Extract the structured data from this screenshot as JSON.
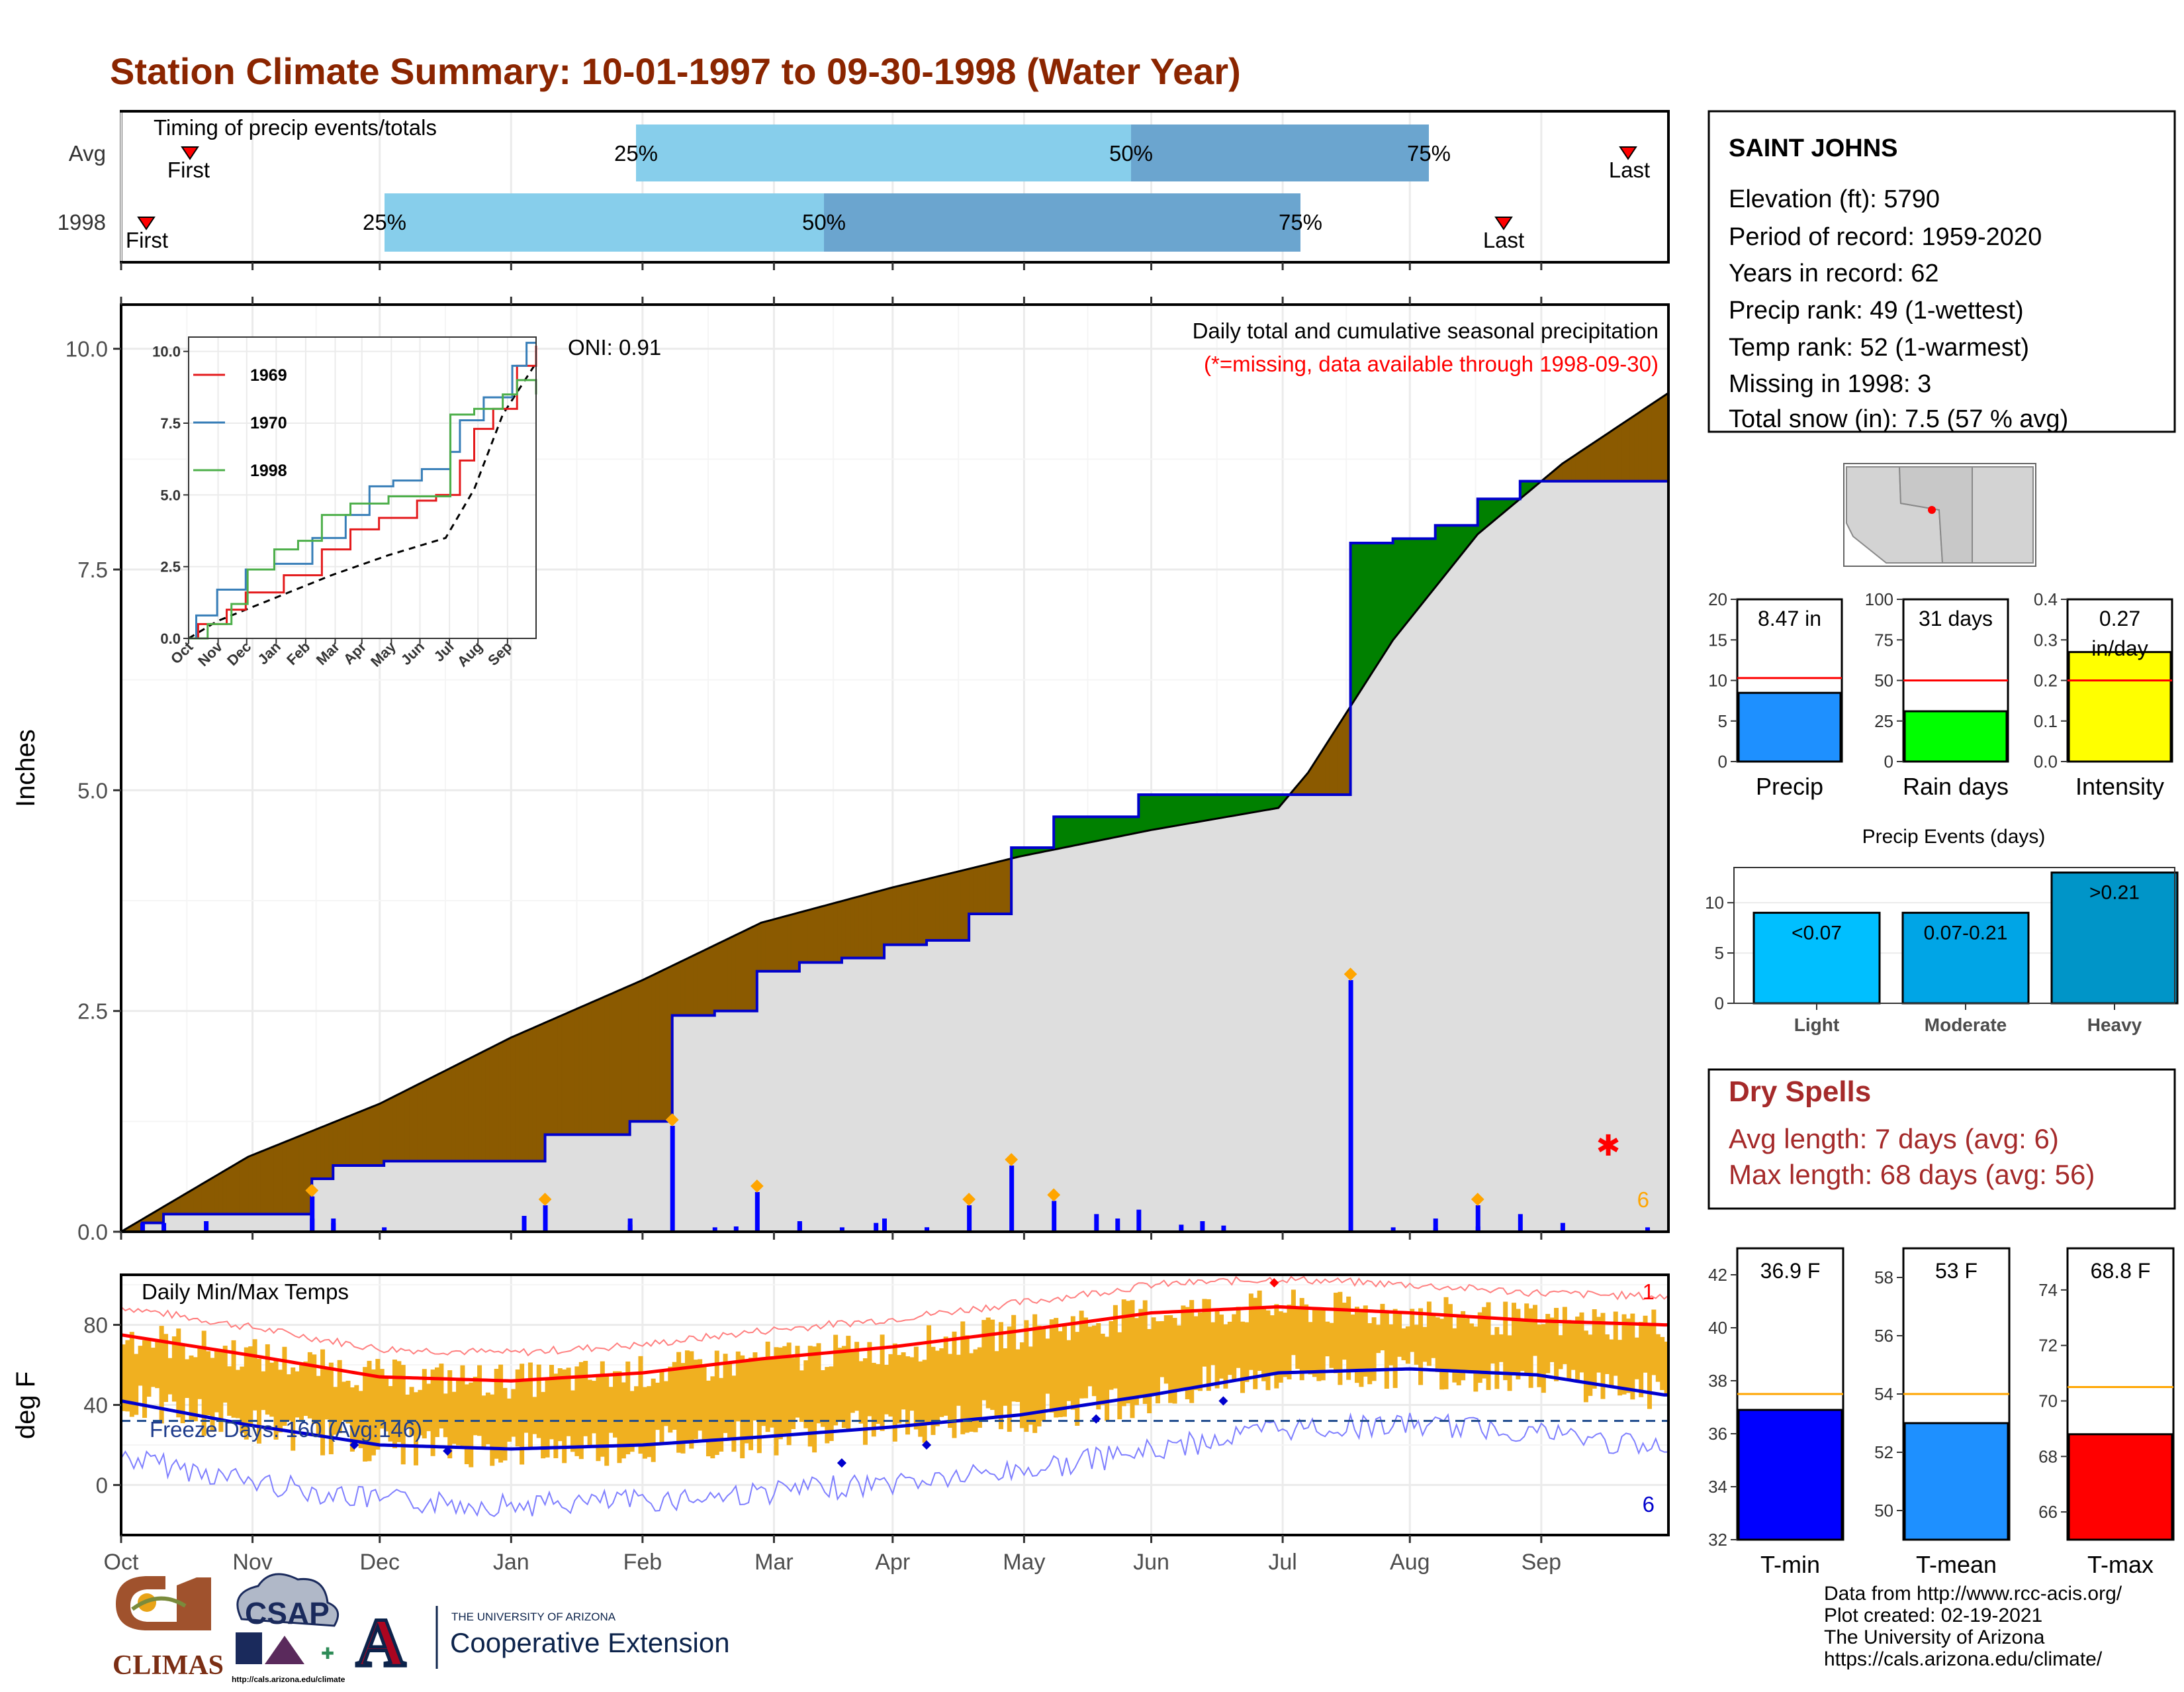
{
  "title": "Station Climate Summary: 10-01-1997 to 09-30-1998 (Water Year)",
  "colors": {
    "title": "#8B2500",
    "precip_line": "#0000CD",
    "precip_green": "#008000",
    "precip_brown": "#8B5A00",
    "avg_fill": "#DEDEDE",
    "tmax_avg": "#FF0000",
    "tmin_avg": "#0000CD",
    "temp_bar": "#F0B020",
    "light_blue": "#87CEEB",
    "mid_blue": "#6BA5CF",
    "precip_bar": "#1E90FF",
    "raindays_bar": "#00FF00",
    "intensity_bar": "#FFFF00",
    "tmin_bar": "#0000FF",
    "tmean_bar": "#1E90FF",
    "tmax_bar": "#FF0000",
    "event_light": "#00BFFF",
    "event_moderate": "#00A5E6",
    "event_heavy": "#0095C8",
    "dry_spell": "#A52A2A"
  },
  "timing": {
    "label": "Timing of precip events/totals",
    "rows": [
      {
        "name": "Avg",
        "first_label": "First",
        "last_label": "Last",
        "p25": "25%",
        "p50": "50%",
        "p75": "75%"
      },
      {
        "name": "1998",
        "first_label": "First",
        "last_label": "Last",
        "p25": "25%",
        "p50": "50%",
        "p75": "75%"
      }
    ]
  },
  "precip_panel": {
    "ylabel": "Inches",
    "yticks": [
      "0.0",
      "2.5",
      "5.0",
      "7.5",
      "10.0"
    ],
    "subtitle": "Daily total and cumulative seasonal precipitation",
    "missing_note": "(*=missing, data available through 1998-09-30)",
    "oni": "ONI: 0.91",
    "missing_count": "6"
  },
  "months": [
    "Oct",
    "Nov",
    "Dec",
    "Jan",
    "Feb",
    "Mar",
    "Apr",
    "May",
    "Jun",
    "Jul",
    "Aug",
    "Sep"
  ],
  "inset": {
    "yticks": [
      "0.0",
      "2.5",
      "5.0",
      "7.5",
      "10.0"
    ],
    "months": [
      "Oct",
      "Nov",
      "Dec",
      "Jan",
      "Feb",
      "Mar",
      "Apr",
      "May",
      "Jun",
      "Jul",
      "Aug",
      "Sep"
    ],
    "legend": [
      {
        "name": "1969",
        "color": "#E41A1C"
      },
      {
        "name": "1970",
        "color": "#377EB8"
      },
      {
        "name": "1998",
        "color": "#4DAF4A"
      }
    ]
  },
  "temp_panel": {
    "label": "Daily Min/Max Temps",
    "ylabel": "deg F",
    "yticks": [
      "0",
      "40",
      "80"
    ],
    "freeze": "Freeze Days: 160 (Avg:146)",
    "record_high_count": "1",
    "record_low_count": "6"
  },
  "station": {
    "name": "SAINT JOHNS",
    "lines": [
      "Elevation (ft): 5790",
      "Period of record: 1959-2020",
      "Years in record: 62",
      "Precip rank: 49 (1-wettest)",
      "Temp rank: 52 (1-warmest)",
      "Missing in 1998: 3",
      "Total snow (in): 7.5 (57 % avg)"
    ]
  },
  "summary_bars": [
    {
      "label": "Precip",
      "value_text": "8.47 in",
      "value": 8.47,
      "avg": 10.3,
      "ymax": 20,
      "yticks": [
        "0",
        "5",
        "10",
        "15",
        "20"
      ],
      "tickvals": [
        0,
        5,
        10,
        15,
        20
      ]
    },
    {
      "label": "Rain days",
      "value_text": "31 days",
      "value": 31,
      "avg": 50,
      "ymax": 100,
      "yticks": [
        "0",
        "25",
        "50",
        "75",
        "100"
      ],
      "tickvals": [
        0,
        25,
        50,
        75,
        100
      ]
    },
    {
      "label": "Intensity",
      "value_text": "0.27 in/day",
      "value": 0.27,
      "avg": 0.2,
      "ymax": 0.4,
      "yticks": [
        "0.0",
        "0.1",
        "0.2",
        "0.3",
        "0.4"
      ],
      "tickvals": [
        0,
        0.1,
        0.2,
        0.3,
        0.4
      ]
    }
  ],
  "events": {
    "title": "Precip Events (days)",
    "yticks": [
      "0",
      "5",
      "10"
    ],
    "bars": [
      {
        "category": "Light",
        "range": "<0.07",
        "value": 9
      },
      {
        "category": "Moderate",
        "range": "0.07-0.21",
        "value": 9
      },
      {
        "category": "Heavy",
        "range": ">0.21",
        "value": 13
      }
    ]
  },
  "dry_spells": {
    "title": "Dry Spells",
    "avg_line": "Avg length: 7 days (avg: 6)",
    "max_line": "Max length: 68 days (avg: 56)"
  },
  "temp_bars": [
    {
      "label": "T-min",
      "value_text": "36.9 F",
      "value": 36.9,
      "avg": 37.5,
      "ymin": 32,
      "ymax": 43,
      "yticks": [
        "32",
        "34",
        "36",
        "38",
        "40",
        "42"
      ],
      "tickvals": [
        32,
        34,
        36,
        38,
        40,
        42
      ]
    },
    {
      "label": "T-mean",
      "value_text": "53 F",
      "value": 53.0,
      "avg": 54.0,
      "ymin": 49,
      "ymax": 59,
      "yticks": [
        "50",
        "52",
        "54",
        "56",
        "58"
      ],
      "tickvals": [
        50,
        52,
        54,
        56,
        58
      ]
    },
    {
      "label": "T-max",
      "value_text": "68.8 F",
      "value": 68.8,
      "avg": 70.5,
      "ymin": 65,
      "ymax": 75.5,
      "yticks": [
        "66",
        "68",
        "70",
        "72",
        "74"
      ],
      "tickvals": [
        66,
        68,
        70,
        72,
        74
      ]
    }
  ],
  "footer": {
    "lines": [
      "Data from http://www.rcc-acis.org/",
      "Plot created: 02-19-2021",
      "The University of Arizona",
      "https://cals.arizona.edu/climate/"
    ]
  },
  "logos": {
    "climas": "CLIMAS",
    "csap": "CSAP",
    "csap_url": "http://cals.arizona.edu/climate",
    "ua_small": "THE UNIVERSITY OF ARIZONA",
    "ua_big": "Cooperative Extension",
    "ua_letter": "A"
  },
  "chart_data": [
    {
      "type": "line",
      "title": "Daily total and cumulative seasonal precipitation",
      "ylabel": "Inches",
      "ylim": [
        0,
        10.5
      ],
      "x": [
        "Oct",
        "Nov",
        "Dec",
        "Jan",
        "Feb",
        "Mar",
        "Apr",
        "May",
        "Jun",
        "Jul",
        "Aug",
        "Sep"
      ],
      "series": [
        {
          "name": "1998",
          "x": [
            0,
            5,
            10,
            20,
            35,
            45,
            50,
            62,
            70,
            80,
            90,
            100,
            110,
            120,
            130,
            140,
            150,
            160,
            170,
            180,
            190,
            200,
            210,
            220,
            230,
            240,
            250,
            260,
            270,
            280,
            290,
            300,
            310,
            320,
            330,
            340,
            350,
            365
          ],
          "y": [
            0,
            0.1,
            0.2,
            0.2,
            0.2,
            0.6,
            0.75,
            0.8,
            0.8,
            0.8,
            0.8,
            1.1,
            1.1,
            1.25,
            2.45,
            2.5,
            2.95,
            3.05,
            3.1,
            3.25,
            3.3,
            3.6,
            4.35,
            4.7,
            4.7,
            4.95,
            4.95,
            4.95,
            4.95,
            4.95,
            7.8,
            7.85,
            8.0,
            8.3,
            8.5,
            8.5,
            8.5,
            8.5
          ]
        },
        {
          "name": "Avg",
          "x": [
            0,
            30,
            61,
            92,
            123,
            151,
            182,
            212,
            243,
            273,
            280,
            300,
            320,
            340,
            365
          ],
          "y": [
            0,
            0.85,
            1.45,
            2.2,
            2.85,
            3.5,
            3.9,
            4.25,
            4.55,
            4.8,
            5.2,
            6.7,
            7.9,
            8.7,
            9.5
          ]
        }
      ]
    },
    {
      "type": "line",
      "title": "Daily Min/Max Temps",
      "ylabel": "deg F",
      "ylim": [
        -25,
        105
      ],
      "x": [
        "Oct",
        "Nov",
        "Dec",
        "Jan",
        "Feb",
        "Mar",
        "Apr",
        "May",
        "Jun",
        "Jul",
        "Aug",
        "Sep"
      ],
      "series": [
        {
          "name": "Avg Tmax",
          "x": [
            0,
            30,
            61,
            92,
            123,
            151,
            182,
            212,
            243,
            273,
            304,
            334,
            364
          ],
          "y": [
            75,
            65,
            54,
            52,
            56,
            63,
            69,
            77,
            86,
            89,
            86,
            82,
            80
          ]
        },
        {
          "name": "Avg Tmin",
          "x": [
            0,
            30,
            61,
            92,
            123,
            151,
            182,
            212,
            243,
            273,
            304,
            334,
            364
          ],
          "y": [
            42,
            30,
            20,
            18,
            20,
            24,
            29,
            35,
            45,
            56,
            58,
            55,
            45
          ]
        }
      ]
    },
    {
      "type": "bar",
      "title": "Precip Events (days)",
      "categories": [
        "Light",
        "Moderate",
        "Heavy"
      ],
      "values": [
        9,
        9,
        13
      ]
    }
  ]
}
